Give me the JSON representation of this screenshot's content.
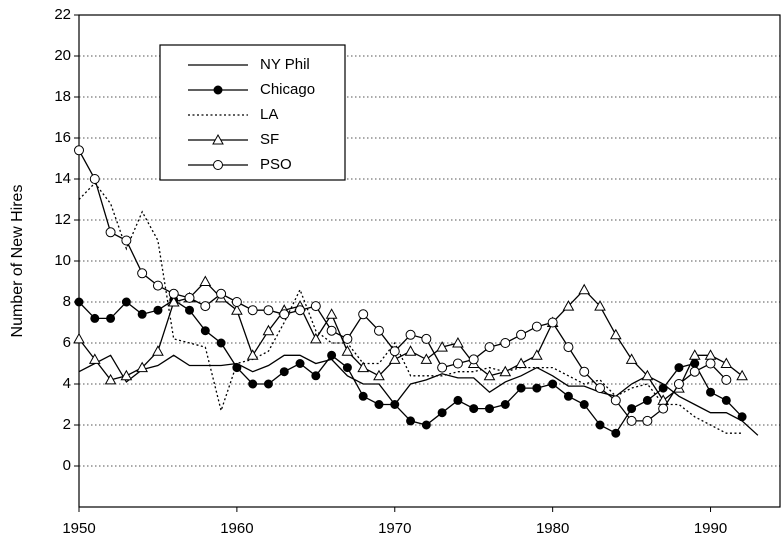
{
  "chart_data": {
    "type": "line",
    "y_label": "Number of New Hires",
    "x": [
      1950,
      1951,
      1952,
      1953,
      1954,
      1955,
      1956,
      1957,
      1958,
      1959,
      1960,
      1961,
      1962,
      1963,
      1964,
      1965,
      1966,
      1967,
      1968,
      1969,
      1970,
      1971,
      1972,
      1973,
      1974,
      1975,
      1976,
      1977,
      1978,
      1979,
      1980,
      1981,
      1982,
      1983,
      1984,
      1985,
      1986,
      1987,
      1988,
      1989,
      1990,
      1991,
      1992,
      1993
    ],
    "xlim": [
      1950,
      1994.4
    ],
    "xticks": [
      1950,
      1960,
      1970,
      1980,
      1990
    ],
    "ylim": [
      -2,
      22
    ],
    "yticks": [
      0,
      2,
      4,
      6,
      8,
      10,
      12,
      14,
      16,
      18,
      20,
      22
    ],
    "grid": true,
    "grid_style": "dotted",
    "legend": "upper left",
    "series": [
      {
        "name": "NY Phil",
        "color": "#000000",
        "style": "solid",
        "marker": "none",
        "values": [
          4.6,
          5.0,
          5.4,
          4.1,
          4.7,
          4.9,
          5.4,
          4.9,
          4.9,
          4.9,
          5.0,
          4.6,
          4.9,
          5.4,
          5.4,
          5.0,
          5.2,
          4.4,
          4.0,
          4.0,
          3.0,
          4.0,
          4.2,
          4.5,
          4.3,
          4.3,
          3.6,
          4.1,
          4.4,
          4.8,
          4.4,
          3.9,
          3.9,
          3.6,
          3.4,
          4.0,
          4.4,
          4.0,
          3.4,
          3.0,
          2.6,
          2.6,
          2.2,
          1.5
        ]
      },
      {
        "name": "Chicago",
        "color": "#000000",
        "style": "solid",
        "marker": "circle-filled",
        "values": [
          8.0,
          7.2,
          7.2,
          8.0,
          7.4,
          7.6,
          8.1,
          7.6,
          6.6,
          6.0,
          4.8,
          4.0,
          4.0,
          4.6,
          5.0,
          4.4,
          5.4,
          4.8,
          3.4,
          3.0,
          3.0,
          2.2,
          2.0,
          2.6,
          3.2,
          2.8,
          2.8,
          3.0,
          3.8,
          3.8,
          4.0,
          3.4,
          3.0,
          2.0,
          1.6,
          2.8,
          3.2,
          3.8,
          4.8,
          5.0,
          3.6,
          3.2,
          2.4,
          null
        ]
      },
      {
        "name": "LA",
        "color": "#000000",
        "style": "dotted",
        "marker": "none",
        "values": [
          13.0,
          13.8,
          12.8,
          10.6,
          12.4,
          11.0,
          6.2,
          6.0,
          5.8,
          2.7,
          5.0,
          5.2,
          5.6,
          7.0,
          8.6,
          6.6,
          6.0,
          6.0,
          5.0,
          5.0,
          6.0,
          4.4,
          4.4,
          4.4,
          4.6,
          4.6,
          4.8,
          4.6,
          4.8,
          4.8,
          4.8,
          4.4,
          4.0,
          4.2,
          3.4,
          3.8,
          4.0,
          3.0,
          3.0,
          2.4,
          2.0,
          1.6,
          1.6,
          null
        ]
      },
      {
        "name": "SF",
        "color": "#000000",
        "style": "solid",
        "marker": "triangle-open",
        "values": [
          6.2,
          5.2,
          4.2,
          4.4,
          4.8,
          5.6,
          8.0,
          8.2,
          9.0,
          8.2,
          7.6,
          5.4,
          6.6,
          7.6,
          7.8,
          6.2,
          7.4,
          5.6,
          4.8,
          4.4,
          5.2,
          5.6,
          5.2,
          5.8,
          6.0,
          5.0,
          4.4,
          4.6,
          5.0,
          5.4,
          7.0,
          7.8,
          8.6,
          7.8,
          6.4,
          5.2,
          4.4,
          3.2,
          3.8,
          5.4,
          5.4,
          5.0,
          4.4,
          null
        ]
      },
      {
        "name": "PSO",
        "color": "#000000",
        "style": "solid",
        "marker": "circle-open",
        "values": [
          15.4,
          14.0,
          11.4,
          11.0,
          9.4,
          8.8,
          8.4,
          8.2,
          7.8,
          8.4,
          8.0,
          7.6,
          7.6,
          7.4,
          7.6,
          7.8,
          6.6,
          6.2,
          7.4,
          6.6,
          5.6,
          6.4,
          6.2,
          4.8,
          5.0,
          5.2,
          5.8,
          6.0,
          6.4,
          6.8,
          7.0,
          5.8,
          4.6,
          3.8,
          3.2,
          2.2,
          2.2,
          2.8,
          4.0,
          4.6,
          5.0,
          4.2,
          null,
          null
        ]
      }
    ]
  }
}
